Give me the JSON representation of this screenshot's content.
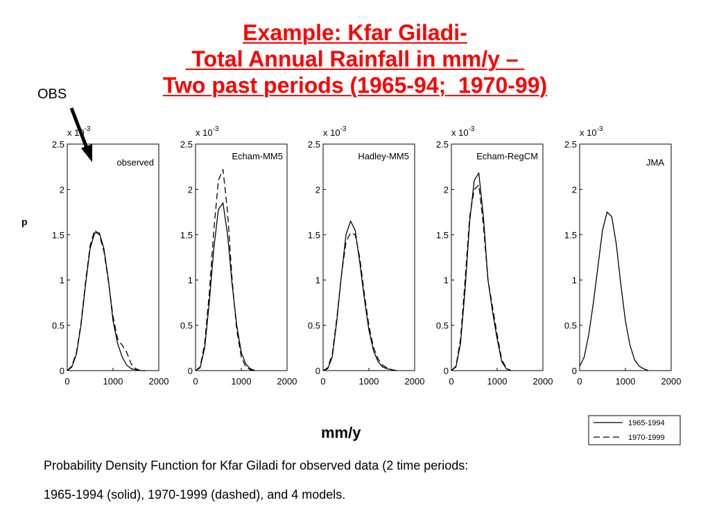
{
  "title": {
    "line1": "Example: Kfar Giladi-",
    "line2": " Total Annual Rainfall in mm/y – ",
    "line3": "Two past periods (1965-94;  1970-99)"
  },
  "annotations": {
    "obs_label": "OBS",
    "p_label": "p",
    "unit_label": "mm/y"
  },
  "caption": {
    "line1": "Probability Density Function for Kfar Giladi for observed data (2 time periods:",
    "line2": "1965-1994 (solid), 1970-1999 (dashed), and 4 models."
  },
  "colors": {
    "title": "#ff0000",
    "lines": "#000000"
  },
  "chart_data": {
    "type": "line",
    "y_multiplier_label": "x 10",
    "y_multiplier_exp": "-3",
    "xlim": [
      0,
      2000
    ],
    "ylim": [
      0,
      2.5
    ],
    "xticks": [
      0,
      1000,
      2000
    ],
    "yticks": [
      0,
      0.5,
      1,
      1.5,
      2,
      2.5
    ],
    "legend": {
      "placement": "bottom-right",
      "entries": [
        {
          "label": "1965-1994",
          "style": "solid"
        },
        {
          "label": "1970-1999",
          "style": "dashed"
        }
      ]
    },
    "panels": [
      {
        "name": "observed",
        "series": [
          {
            "style": "solid",
            "x": [
              0,
              100,
              200,
              300,
              400,
              500,
              600,
              700,
              800,
              900,
              1000,
              1100,
              1200,
              1300,
              1400,
              1500,
              1600,
              1700
            ],
            "y": [
              0,
              0.04,
              0.18,
              0.5,
              0.95,
              1.35,
              1.52,
              1.52,
              1.35,
              1.0,
              0.55,
              0.3,
              0.15,
              0.06,
              0.02,
              0.01,
              0,
              0
            ]
          },
          {
            "style": "dashed",
            "x": [
              0,
              100,
              200,
              300,
              400,
              500,
              600,
              700,
              800,
              900,
              1000,
              1100,
              1200,
              1300,
              1400,
              1500,
              1600,
              1700
            ],
            "y": [
              0,
              0.05,
              0.2,
              0.52,
              0.98,
              1.38,
              1.55,
              1.5,
              1.32,
              0.98,
              0.6,
              0.35,
              0.28,
              0.2,
              0.07,
              0.02,
              0,
              0
            ]
          }
        ]
      },
      {
        "name": "Echam-MM5",
        "series": [
          {
            "style": "solid",
            "x": [
              0,
              100,
              200,
              300,
              400,
              500,
              600,
              700,
              800,
              900,
              1000,
              1100,
              1200,
              1300
            ],
            "y": [
              0,
              0.03,
              0.25,
              0.75,
              1.35,
              1.78,
              1.85,
              1.5,
              0.95,
              0.5,
              0.2,
              0.07,
              0.02,
              0
            ]
          },
          {
            "style": "dashed",
            "x": [
              0,
              100,
              200,
              300,
              400,
              500,
              600,
              700,
              800,
              900,
              1000,
              1100,
              1200,
              1300
            ],
            "y": [
              0,
              0.04,
              0.3,
              0.85,
              1.55,
              2.1,
              2.22,
              1.75,
              1.0,
              0.45,
              0.15,
              0.04,
              0.01,
              0
            ]
          }
        ]
      },
      {
        "name": "Hadley-MM5",
        "series": [
          {
            "style": "solid",
            "x": [
              0,
              100,
              200,
              300,
              400,
              500,
              600,
              700,
              800,
              900,
              1000,
              1100,
              1200,
              1300,
              1400,
              1500,
              1600
            ],
            "y": [
              0,
              0.02,
              0.15,
              0.55,
              1.05,
              1.5,
              1.65,
              1.55,
              1.2,
              0.8,
              0.45,
              0.22,
              0.1,
              0.04,
              0.02,
              0.01,
              0
            ]
          },
          {
            "style": "dashed",
            "x": [
              0,
              100,
              200,
              300,
              400,
              500,
              600,
              700,
              800,
              900,
              1000,
              1100,
              1200,
              1300,
              1400,
              1500,
              1600
            ],
            "y": [
              0,
              0.03,
              0.18,
              0.58,
              1.05,
              1.42,
              1.52,
              1.5,
              1.25,
              0.85,
              0.5,
              0.26,
              0.13,
              0.06,
              0.03,
              0.01,
              0
            ]
          }
        ]
      },
      {
        "name": "Echam-RegCM",
        "series": [
          {
            "style": "solid",
            "x": [
              0,
              100,
              200,
              300,
              400,
              500,
              600,
              700,
              800,
              900,
              1000,
              1100,
              1200,
              1300
            ],
            "y": [
              0,
              0.04,
              0.3,
              0.9,
              1.65,
              2.1,
              2.18,
              1.7,
              1.0,
              0.65,
              0.35,
              0.1,
              0.02,
              0
            ]
          },
          {
            "style": "dashed",
            "x": [
              0,
              100,
              200,
              300,
              400,
              500,
              600,
              700,
              800,
              900,
              1000,
              1100,
              1200,
              1300
            ],
            "y": [
              0,
              0.05,
              0.35,
              1.0,
              1.7,
              2.0,
              2.05,
              1.6,
              1.0,
              0.7,
              0.4,
              0.12,
              0.03,
              0
            ]
          }
        ]
      },
      {
        "name": "JMA",
        "series": [
          {
            "style": "solid",
            "x": [
              0,
              100,
              200,
              300,
              400,
              500,
              600,
              700,
              800,
              900,
              1000,
              1100,
              1200,
              1300,
              1400,
              1500
            ],
            "y": [
              0.05,
              0.15,
              0.4,
              0.75,
              1.15,
              1.55,
              1.75,
              1.7,
              1.4,
              0.95,
              0.55,
              0.28,
              0.12,
              0.05,
              0.02,
              0
            ]
          }
        ]
      }
    ]
  }
}
